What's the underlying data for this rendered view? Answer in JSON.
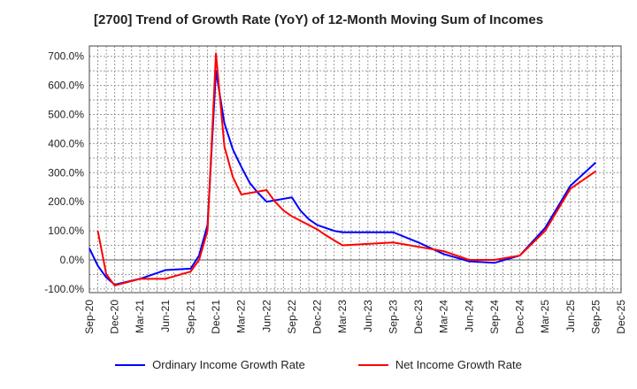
{
  "chart_data": {
    "type": "line",
    "title": "[2700]  Trend of Growth Rate (YoY) of 12-Month Moving Sum of Incomes",
    "xlabel": "",
    "ylabel": "",
    "ylim": [
      -100,
      720
    ],
    "yticks": [
      -100,
      0,
      100,
      200,
      300,
      400,
      500,
      600,
      700
    ],
    "ytick_labels": [
      "-100.0%",
      "0.0%",
      "100.0%",
      "200.0%",
      "300.0%",
      "400.0%",
      "500.0%",
      "600.0%",
      "700.0%"
    ],
    "xtick_labels": [
      "Sep-20",
      "Dec-20",
      "Mar-21",
      "Jun-21",
      "Sep-21",
      "Dec-21",
      "Mar-22",
      "Jun-22",
      "Sep-22",
      "Dec-22",
      "Mar-23",
      "Jun-23",
      "Sep-23",
      "Dec-23",
      "Mar-24",
      "Jun-24",
      "Sep-24",
      "Dec-24",
      "Mar-25",
      "Jun-25",
      "Sep-25",
      "Dec-25"
    ],
    "x_start": "Sep-20",
    "grid": true,
    "legend_position": "bottom",
    "series": [
      {
        "name": "Ordinary Income Growth Rate",
        "color": "#0000ff",
        "points": [
          [
            0,
            40
          ],
          [
            1,
            -20
          ],
          [
            2,
            -60
          ],
          [
            3,
            -85
          ],
          [
            6,
            -65
          ],
          [
            9,
            -35
          ],
          [
            12,
            -30
          ],
          [
            13,
            15
          ],
          [
            14,
            120
          ],
          [
            15,
            650
          ],
          [
            16,
            470
          ],
          [
            17,
            380
          ],
          [
            18,
            320
          ],
          [
            19,
            265
          ],
          [
            20,
            230
          ],
          [
            21,
            200
          ],
          [
            24,
            215
          ],
          [
            25,
            170
          ],
          [
            26,
            140
          ],
          [
            27,
            120
          ],
          [
            28,
            110
          ],
          [
            29,
            100
          ],
          [
            30,
            95
          ],
          [
            36,
            95
          ],
          [
            39,
            60
          ],
          [
            42,
            20
          ],
          [
            45,
            -5
          ],
          [
            48,
            -10
          ],
          [
            51,
            15
          ],
          [
            54,
            110
          ],
          [
            57,
            255
          ],
          [
            60,
            335
          ]
        ]
      },
      {
        "name": "Net Income Growth Rate",
        "color": "#ff0000",
        "points": [
          [
            1,
            100
          ],
          [
            2,
            -49
          ],
          [
            3,
            -88
          ],
          [
            6,
            -65
          ],
          [
            9,
            -65
          ],
          [
            12,
            -40
          ],
          [
            13,
            0
          ],
          [
            14,
            100
          ],
          [
            15,
            710
          ],
          [
            16,
            390
          ],
          [
            17,
            285
          ],
          [
            18,
            225
          ],
          [
            21,
            240
          ],
          [
            22,
            200
          ],
          [
            23,
            170
          ],
          [
            24,
            150
          ],
          [
            25,
            135
          ],
          [
            26,
            120
          ],
          [
            27,
            105
          ],
          [
            28,
            85
          ],
          [
            30,
            50
          ],
          [
            36,
            60
          ],
          [
            39,
            45
          ],
          [
            42,
            30
          ],
          [
            45,
            0
          ],
          [
            48,
            0
          ],
          [
            51,
            15
          ],
          [
            54,
            100
          ],
          [
            57,
            245
          ],
          [
            60,
            305
          ]
        ]
      }
    ]
  }
}
